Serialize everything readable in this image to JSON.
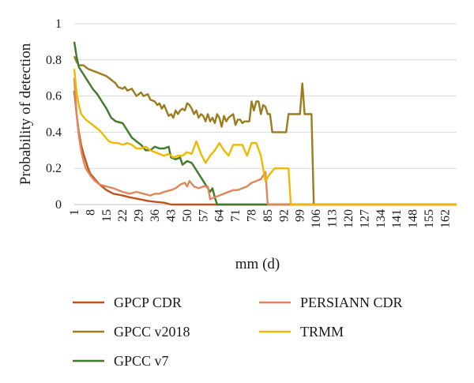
{
  "chart_data": {
    "type": "line",
    "xlabel": "mm (d)",
    "ylabel": "Probability of detection",
    "xlim": [
      1,
      167
    ],
    "ylim": [
      0,
      1
    ],
    "grid": "horizontal",
    "legend_position": "bottom",
    "x_ticks": [
      "1",
      "8",
      "15",
      "22",
      "29",
      "36",
      "43",
      "50",
      "57",
      "64",
      "71",
      "78",
      "85",
      "92",
      "99",
      "106",
      "113",
      "120",
      "127",
      "134",
      "141",
      "148",
      "155",
      "162"
    ],
    "y_ticks": [
      "0",
      "0.2",
      "0.4",
      "0.6",
      "0.8",
      "1"
    ],
    "series": [
      {
        "name": "GPCP CDR",
        "color": "#c0531c",
        "points": [
          [
            1,
            0.63
          ],
          [
            2,
            0.5
          ],
          [
            3,
            0.4
          ],
          [
            4,
            0.33
          ],
          [
            5,
            0.28
          ],
          [
            6,
            0.24
          ],
          [
            7,
            0.2
          ],
          [
            8,
            0.17
          ],
          [
            10,
            0.14
          ],
          [
            12,
            0.11
          ],
          [
            15,
            0.08
          ],
          [
            18,
            0.06
          ],
          [
            22,
            0.05
          ],
          [
            25,
            0.04
          ],
          [
            29,
            0.03
          ],
          [
            33,
            0.02
          ],
          [
            36,
            0.015
          ],
          [
            40,
            0.01
          ],
          [
            43,
            0.0
          ],
          [
            167,
            0.0
          ]
        ]
      },
      {
        "name": "GPCC v2018",
        "color": "#9c7b1c",
        "points": [
          [
            1,
            0.82
          ],
          [
            2,
            0.79
          ],
          [
            3,
            0.77
          ],
          [
            5,
            0.77
          ],
          [
            7,
            0.75
          ],
          [
            9,
            0.74
          ],
          [
            11,
            0.73
          ],
          [
            13,
            0.72
          ],
          [
            15,
            0.71
          ],
          [
            17,
            0.69
          ],
          [
            19,
            0.67
          ],
          [
            20,
            0.65
          ],
          [
            22,
            0.64
          ],
          [
            23,
            0.65
          ],
          [
            24,
            0.63
          ],
          [
            26,
            0.64
          ],
          [
            27,
            0.62
          ],
          [
            28,
            0.6
          ],
          [
            29,
            0.61
          ],
          [
            30,
            0.62
          ],
          [
            31,
            0.6
          ],
          [
            33,
            0.61
          ],
          [
            34,
            0.58
          ],
          [
            36,
            0.57
          ],
          [
            37,
            0.55
          ],
          [
            38,
            0.56
          ],
          [
            39,
            0.53
          ],
          [
            40,
            0.55
          ],
          [
            41,
            0.52
          ],
          [
            42,
            0.49
          ],
          [
            43,
            0.5
          ],
          [
            44,
            0.48
          ],
          [
            45,
            0.52
          ],
          [
            46,
            0.5
          ],
          [
            47,
            0.52
          ],
          [
            48,
            0.53
          ],
          [
            49,
            0.52
          ],
          [
            50,
            0.56
          ],
          [
            51,
            0.55
          ],
          [
            52,
            0.53
          ],
          [
            53,
            0.5
          ],
          [
            54,
            0.52
          ],
          [
            55,
            0.48
          ],
          [
            56,
            0.5
          ],
          [
            57,
            0.49
          ],
          [
            58,
            0.46
          ],
          [
            59,
            0.5
          ],
          [
            60,
            0.46
          ],
          [
            61,
            0.48
          ],
          [
            62,
            0.45
          ],
          [
            63,
            0.5
          ],
          [
            64,
            0.48
          ],
          [
            65,
            0.43
          ],
          [
            66,
            0.49
          ],
          [
            67,
            0.46
          ],
          [
            68,
            0.48
          ],
          [
            70,
            0.5
          ],
          [
            71,
            0.44
          ],
          [
            72,
            0.47
          ],
          [
            73,
            0.47
          ],
          [
            74,
            0.45
          ],
          [
            75,
            0.46
          ],
          [
            77,
            0.46
          ],
          [
            78,
            0.57
          ],
          [
            79,
            0.52
          ],
          [
            80,
            0.57
          ],
          [
            81,
            0.57
          ],
          [
            82,
            0.5
          ],
          [
            83,
            0.55
          ],
          [
            84,
            0.54
          ],
          [
            85,
            0.5
          ],
          [
            86,
            0.5
          ],
          [
            87,
            0.4
          ],
          [
            91,
            0.4
          ],
          [
            92,
            0.4
          ],
          [
            93,
            0.4
          ],
          [
            94,
            0.5
          ],
          [
            99,
            0.5
          ],
          [
            100,
            0.67
          ],
          [
            101,
            0.5
          ],
          [
            104,
            0.5
          ],
          [
            105,
            0.0
          ],
          [
            167,
            0.0
          ]
        ]
      },
      {
        "name": "GPCC v7",
        "color": "#3f7a2a",
        "points": [
          [
            1,
            0.9
          ],
          [
            2,
            0.82
          ],
          [
            3,
            0.76
          ],
          [
            5,
            0.72
          ],
          [
            7,
            0.68
          ],
          [
            9,
            0.64
          ],
          [
            11,
            0.61
          ],
          [
            13,
            0.57
          ],
          [
            15,
            0.53
          ],
          [
            17,
            0.48
          ],
          [
            19,
            0.46
          ],
          [
            22,
            0.45
          ],
          [
            24,
            0.41
          ],
          [
            26,
            0.37
          ],
          [
            28,
            0.35
          ],
          [
            30,
            0.33
          ],
          [
            32,
            0.3
          ],
          [
            34,
            0.3
          ],
          [
            36,
            0.32
          ],
          [
            38,
            0.31
          ],
          [
            40,
            0.31
          ],
          [
            42,
            0.32
          ],
          [
            43,
            0.26
          ],
          [
            45,
            0.25
          ],
          [
            47,
            0.26
          ],
          [
            48,
            0.22
          ],
          [
            50,
            0.24
          ],
          [
            52,
            0.23
          ],
          [
            54,
            0.19
          ],
          [
            56,
            0.15
          ],
          [
            58,
            0.11
          ],
          [
            60,
            0.07
          ],
          [
            61,
            0.09
          ],
          [
            62,
            0.04
          ],
          [
            63,
            0.0
          ],
          [
            167,
            0.0
          ]
        ]
      },
      {
        "name": "PERSIANN CDR",
        "color": "#e0875a",
        "points": [
          [
            1,
            0.7
          ],
          [
            2,
            0.5
          ],
          [
            3,
            0.38
          ],
          [
            4,
            0.3
          ],
          [
            5,
            0.24
          ],
          [
            6,
            0.2
          ],
          [
            8,
            0.16
          ],
          [
            10,
            0.13
          ],
          [
            12,
            0.11
          ],
          [
            15,
            0.1
          ],
          [
            18,
            0.09
          ],
          [
            20,
            0.08
          ],
          [
            22,
            0.07
          ],
          [
            25,
            0.06
          ],
          [
            28,
            0.07
          ],
          [
            31,
            0.06
          ],
          [
            34,
            0.05
          ],
          [
            36,
            0.06
          ],
          [
            38,
            0.06
          ],
          [
            40,
            0.07
          ],
          [
            43,
            0.08
          ],
          [
            45,
            0.09
          ],
          [
            47,
            0.11
          ],
          [
            49,
            0.12
          ],
          [
            50,
            0.1
          ],
          [
            51,
            0.13
          ],
          [
            53,
            0.1
          ],
          [
            55,
            0.09
          ],
          [
            57,
            0.1
          ],
          [
            59,
            0.1
          ],
          [
            60,
            0.03
          ],
          [
            62,
            0.04
          ],
          [
            64,
            0.05
          ],
          [
            66,
            0.06
          ],
          [
            68,
            0.07
          ],
          [
            70,
            0.08
          ],
          [
            72,
            0.08
          ],
          [
            74,
            0.09
          ],
          [
            76,
            0.1
          ],
          [
            78,
            0.12
          ],
          [
            80,
            0.13
          ],
          [
            82,
            0.14
          ],
          [
            84,
            0.18
          ],
          [
            85,
            0.0
          ],
          [
            167,
            0.0
          ]
        ]
      },
      {
        "name": "TRMM",
        "color": "#f0b800",
        "points": [
          [
            1,
            0.75
          ],
          [
            2,
            0.62
          ],
          [
            3,
            0.55
          ],
          [
            4,
            0.5
          ],
          [
            6,
            0.47
          ],
          [
            8,
            0.45
          ],
          [
            10,
            0.43
          ],
          [
            12,
            0.41
          ],
          [
            14,
            0.38
          ],
          [
            16,
            0.35
          ],
          [
            18,
            0.34
          ],
          [
            20,
            0.34
          ],
          [
            22,
            0.33
          ],
          [
            24,
            0.34
          ],
          [
            26,
            0.33
          ],
          [
            28,
            0.31
          ],
          [
            30,
            0.31
          ],
          [
            32,
            0.32
          ],
          [
            34,
            0.3
          ],
          [
            36,
            0.29
          ],
          [
            38,
            0.28
          ],
          [
            40,
            0.27
          ],
          [
            42,
            0.28
          ],
          [
            44,
            0.26
          ],
          [
            46,
            0.27
          ],
          [
            48,
            0.27
          ],
          [
            50,
            0.29
          ],
          [
            52,
            0.28
          ],
          [
            54,
            0.35
          ],
          [
            56,
            0.28
          ],
          [
            58,
            0.23
          ],
          [
            60,
            0.27
          ],
          [
            62,
            0.3
          ],
          [
            64,
            0.34
          ],
          [
            66,
            0.3
          ],
          [
            68,
            0.27
          ],
          [
            70,
            0.33
          ],
          [
            72,
            0.33
          ],
          [
            74,
            0.33
          ],
          [
            76,
            0.27
          ],
          [
            78,
            0.34
          ],
          [
            80,
            0.34
          ],
          [
            82,
            0.27
          ],
          [
            84,
            0.13
          ],
          [
            86,
            0.17
          ],
          [
            88,
            0.2
          ],
          [
            92,
            0.2
          ],
          [
            94,
            0.2
          ],
          [
            95,
            0.0
          ],
          [
            167,
            0.0
          ]
        ]
      }
    ],
    "legend": [
      {
        "label": "GPCP CDR",
        "color": "#c0531c"
      },
      {
        "label": "PERSIANN CDR",
        "color": "#e0875a"
      },
      {
        "label": "GPCC v2018",
        "color": "#9c7b1c"
      },
      {
        "label": "TRMM",
        "color": "#f0b800"
      },
      {
        "label": "GPCC v7",
        "color": "#3f7a2a"
      }
    ]
  }
}
